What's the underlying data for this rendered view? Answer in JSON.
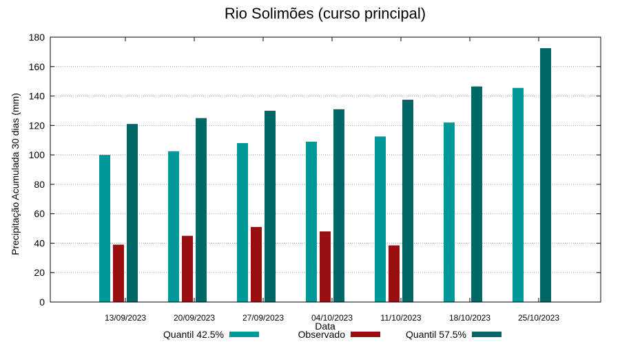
{
  "chart_data": {
    "type": "bar",
    "title": "Rio Solimões (curso principal)",
    "xlabel": "Data",
    "ylabel": "Precipitação Acumulada 30 dias (mm)",
    "ylim": [
      0,
      180
    ],
    "yticks": [
      0,
      20,
      40,
      60,
      80,
      100,
      120,
      140,
      160,
      180
    ],
    "grid": true,
    "legend": "bottom",
    "categories": [
      "13/09/2023",
      "20/09/2023",
      "27/09/2023",
      "04/10/2023",
      "11/10/2023",
      "18/10/2023",
      "25/10/2023"
    ],
    "series": [
      {
        "name": "Quantil 42.5%",
        "color": "#009999",
        "values": [
          100,
          102.5,
          108,
          109,
          112.5,
          122,
          145.5
        ]
      },
      {
        "name": "Observado",
        "color": "#990f0f",
        "values": [
          39,
          45,
          51,
          48,
          38.5,
          null,
          null
        ]
      },
      {
        "name": "Quantil 57.5%",
        "color": "#006666",
        "values": [
          121,
          125,
          130,
          131,
          137.5,
          146.5,
          172.5
        ]
      }
    ]
  }
}
